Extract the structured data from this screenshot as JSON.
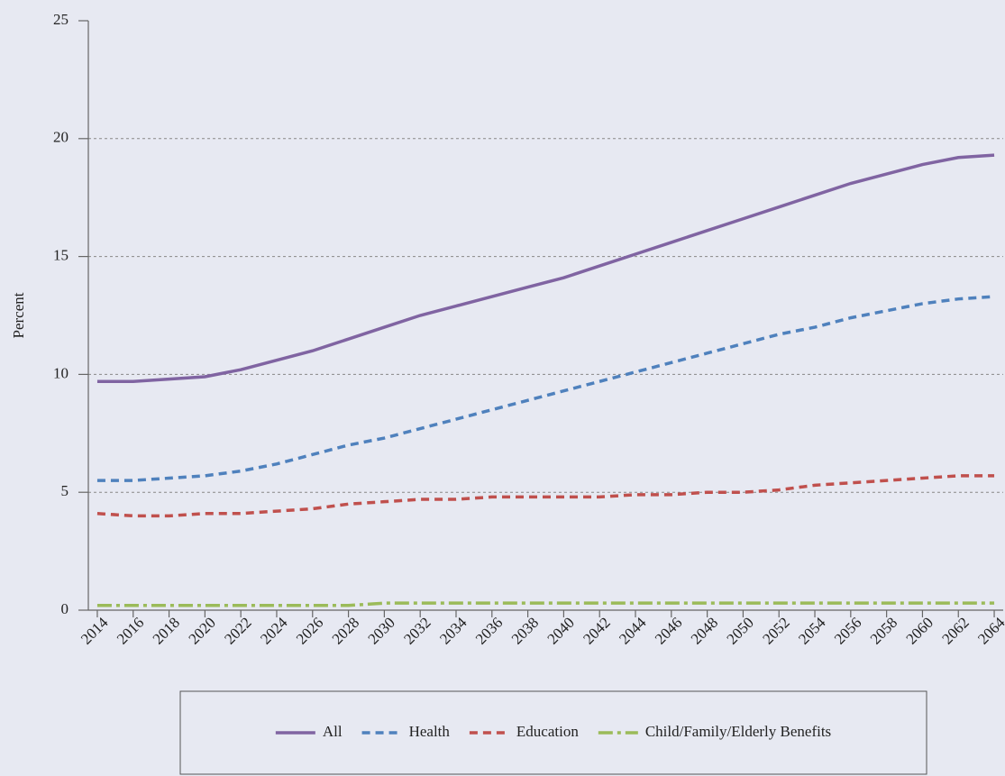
{
  "chart_data": {
    "type": "line",
    "y_label": "Percent",
    "x": [
      2014,
      2016,
      2018,
      2020,
      2022,
      2024,
      2026,
      2028,
      2030,
      2032,
      2034,
      2036,
      2038,
      2040,
      2042,
      2044,
      2046,
      2048,
      2050,
      2052,
      2054,
      2056,
      2058,
      2060,
      2062,
      2064
    ],
    "xlim": [
      2013.5,
      2064.5
    ],
    "xticks": [
      2014,
      2016,
      2018,
      2020,
      2022,
      2024,
      2026,
      2028,
      2030,
      2032,
      2034,
      2036,
      2038,
      2040,
      2042,
      2044,
      2046,
      2048,
      2050,
      2052,
      2054,
      2056,
      2058,
      2060,
      2062,
      2064
    ],
    "ylim": [
      0,
      25
    ],
    "yticks": [
      0,
      5,
      10,
      15,
      20,
      25
    ],
    "grid": true,
    "legend": "bottom",
    "series": [
      {
        "name": "All",
        "color": "#8064a2",
        "dash": "solid",
        "values": [
          9.7,
          9.7,
          9.8,
          9.9,
          10.2,
          10.6,
          11.0,
          11.5,
          12.0,
          12.5,
          12.9,
          13.3,
          13.7,
          14.1,
          14.6,
          15.1,
          15.6,
          16.1,
          16.6,
          17.1,
          17.6,
          18.1,
          18.5,
          18.9,
          19.2,
          19.3
        ]
      },
      {
        "name": "Health",
        "color": "#4f81bd",
        "dash": "dashed",
        "values": [
          5.5,
          5.5,
          5.6,
          5.7,
          5.9,
          6.2,
          6.6,
          7.0,
          7.3,
          7.7,
          8.1,
          8.5,
          8.9,
          9.3,
          9.7,
          10.1,
          10.5,
          10.9,
          11.3,
          11.7,
          12.0,
          12.4,
          12.7,
          13.0,
          13.2,
          13.3
        ]
      },
      {
        "name": "Education",
        "color": "#c0504d",
        "dash": "dashed",
        "values": [
          4.1,
          4.0,
          4.0,
          4.1,
          4.1,
          4.2,
          4.3,
          4.5,
          4.6,
          4.7,
          4.7,
          4.8,
          4.8,
          4.8,
          4.8,
          4.9,
          4.9,
          5.0,
          5.0,
          5.1,
          5.3,
          5.4,
          5.5,
          5.6,
          5.7,
          5.7
        ]
      },
      {
        "name": "Child/Family/Elderly Benefits",
        "color": "#9bbb59",
        "dash": "dashdot",
        "values": [
          0.2,
          0.2,
          0.2,
          0.2,
          0.2,
          0.2,
          0.2,
          0.2,
          0.3,
          0.3,
          0.3,
          0.3,
          0.3,
          0.3,
          0.3,
          0.3,
          0.3,
          0.3,
          0.3,
          0.3,
          0.3,
          0.3,
          0.3,
          0.3,
          0.3,
          0.3
        ]
      }
    ]
  }
}
